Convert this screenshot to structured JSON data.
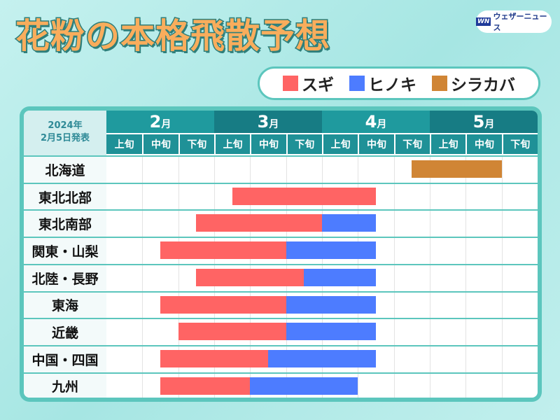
{
  "header": {
    "title": "花粉の本格飛散予想",
    "logo_mark": "WN",
    "logo_text": "ウェザーニュース"
  },
  "legend": [
    {
      "label": "スギ",
      "color": "#ff6464"
    },
    {
      "label": "ヒノキ",
      "color": "#4d7cff"
    },
    {
      "label": "シラカバ",
      "color": "#d08535"
    }
  ],
  "chart_data": {
    "type": "gantt",
    "corner": {
      "year": "2024年",
      "date": "2月5日発表"
    },
    "months": [
      {
        "num": "2",
        "unit": "月"
      },
      {
        "num": "3",
        "unit": "月"
      },
      {
        "num": "4",
        "unit": "月"
      },
      {
        "num": "5",
        "unit": "月"
      }
    ],
    "dekads": [
      "上旬",
      "中旬",
      "下旬"
    ],
    "month_colors": [
      "#1f9a9e",
      "#177c84"
    ],
    "time_unit": "dekads from 2月上旬 start (0) to 5月下旬 end (12)",
    "regions": [
      {
        "name": "北海道",
        "bars": [
          {
            "type": "シラカバ",
            "start": 8.5,
            "end": 11
          }
        ]
      },
      {
        "name": "東北北部",
        "bars": [
          {
            "type": "スギ",
            "start": 3.5,
            "end": 7.5
          }
        ]
      },
      {
        "name": "東北南部",
        "bars": [
          {
            "type": "スギ",
            "start": 2.5,
            "end": 6
          },
          {
            "type": "ヒノキ",
            "start": 6,
            "end": 7.5
          }
        ]
      },
      {
        "name": "関東・山梨",
        "bars": [
          {
            "type": "スギ",
            "start": 1.5,
            "end": 5
          },
          {
            "type": "ヒノキ",
            "start": 5,
            "end": 7.5
          }
        ]
      },
      {
        "name": "北陸・長野",
        "bars": [
          {
            "type": "スギ",
            "start": 2.5,
            "end": 5.5
          },
          {
            "type": "ヒノキ",
            "start": 5.5,
            "end": 7.5
          }
        ]
      },
      {
        "name": "東海",
        "bars": [
          {
            "type": "スギ",
            "start": 1.5,
            "end": 5
          },
          {
            "type": "ヒノキ",
            "start": 5,
            "end": 7.5
          }
        ]
      },
      {
        "name": "近畿",
        "bars": [
          {
            "type": "スギ",
            "start": 2,
            "end": 5
          },
          {
            "type": "ヒノキ",
            "start": 5,
            "end": 7.5
          }
        ]
      },
      {
        "name": "中国・四国",
        "bars": [
          {
            "type": "スギ",
            "start": 1.5,
            "end": 4.5
          },
          {
            "type": "ヒノキ",
            "start": 4.5,
            "end": 7.5
          }
        ]
      },
      {
        "name": "九州",
        "bars": [
          {
            "type": "スギ",
            "start": 1.5,
            "end": 4
          },
          {
            "type": "ヒノキ",
            "start": 4,
            "end": 7
          }
        ]
      }
    ]
  }
}
